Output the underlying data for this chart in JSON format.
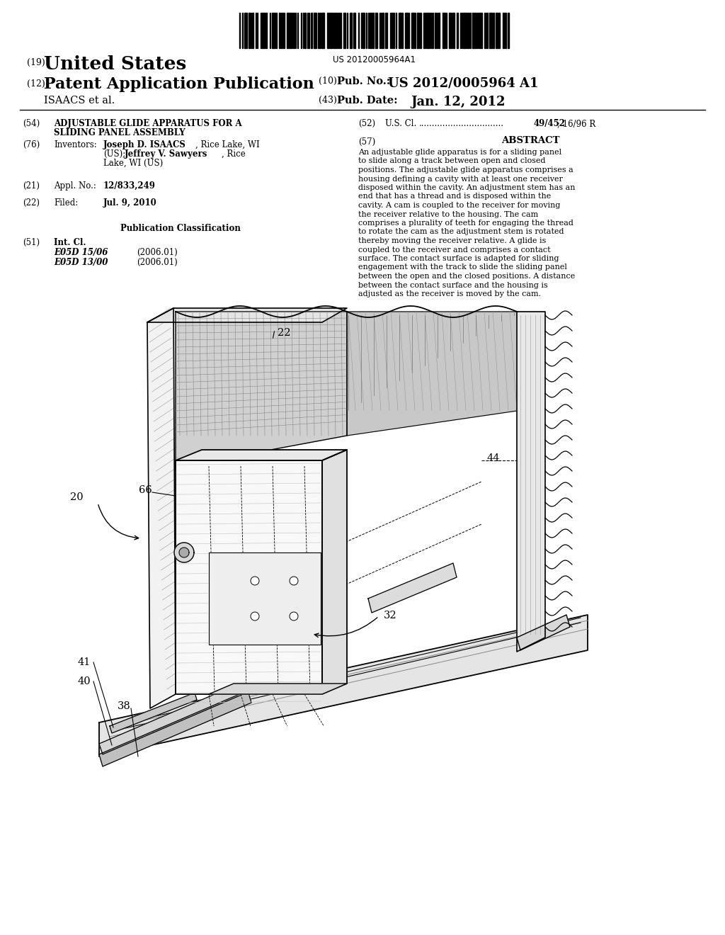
{
  "barcode_text": "US 20120005964A1",
  "country": "(19)  United States",
  "pub_type_label": "(12)",
  "pub_type": "Patent Application Publication",
  "assignee": "ISAACS et al.",
  "pub_no_label": "(10)  Pub. No.:",
  "pub_no": "US 2012/0005964 A1",
  "pub_date_label": "(43)  Pub. Date:",
  "pub_date": "Jan. 12, 2012",
  "title_label": "(54)",
  "title_line1": "ADJUSTABLE GLIDE APPARATUS FOR A",
  "title_line2": "SLIDING PANEL ASSEMBLY",
  "us_cl_label": "(52)",
  "us_cl_text": "U.S. Cl.",
  "us_cl_value": "49/452",
  "us_cl_extra": "; 16/96 R",
  "abstract_label": "(57)",
  "abstract_title": "ABSTRACT",
  "abstract_text": "An adjustable glide apparatus is for a sliding panel to slide along a track between open and closed positions. The adjustable glide apparatus comprises a housing defining a cavity with at least one receiver disposed within the cavity. An adjustment stem has an end that has a thread and is disposed within the cavity. A cam is coupled to the receiver for moving the receiver relative to the housing. The cam comprises a plurality of teeth for engaging the thread to rotate the cam as the adjustment stem is rotated thereby moving the receiver relative. A glide is coupled to the receiver and comprises a contact surface. The contact surface is adapted for sliding engagement with the track to slide the sliding panel between the open and the closed positions. A distance between the contact surface and the housing is adjusted as the receiver is moved by the cam.",
  "inv_label": "(76)",
  "inv_title": "Inventors:",
  "inv1_bold": "Joseph D. ISAACS",
  "inv1_rest": ", Rice Lake, WI",
  "inv1_line2": "(US);",
  "inv2_bold": "Jeffrey V. Sawyers",
  "inv2_rest": ", Rice",
  "inv2_line3": "Lake, WI (US)",
  "appl_label": "(21)",
  "appl_title": "Appl. No.:",
  "appl_no": "12/833,249",
  "filed_label": "(22)",
  "filed_title": "Filed:",
  "filed_date": "Jul. 9, 2010",
  "pub_class": "Publication Classification",
  "int_cl_label": "(51)",
  "int_cl_title": "Int. Cl.",
  "int_cl1": "E05D 15/06",
  "int_cl1_date": "(2006.01)",
  "int_cl2": "E05D 13/00",
  "int_cl2_date": "(2006.01)",
  "bg_color": "#ffffff"
}
